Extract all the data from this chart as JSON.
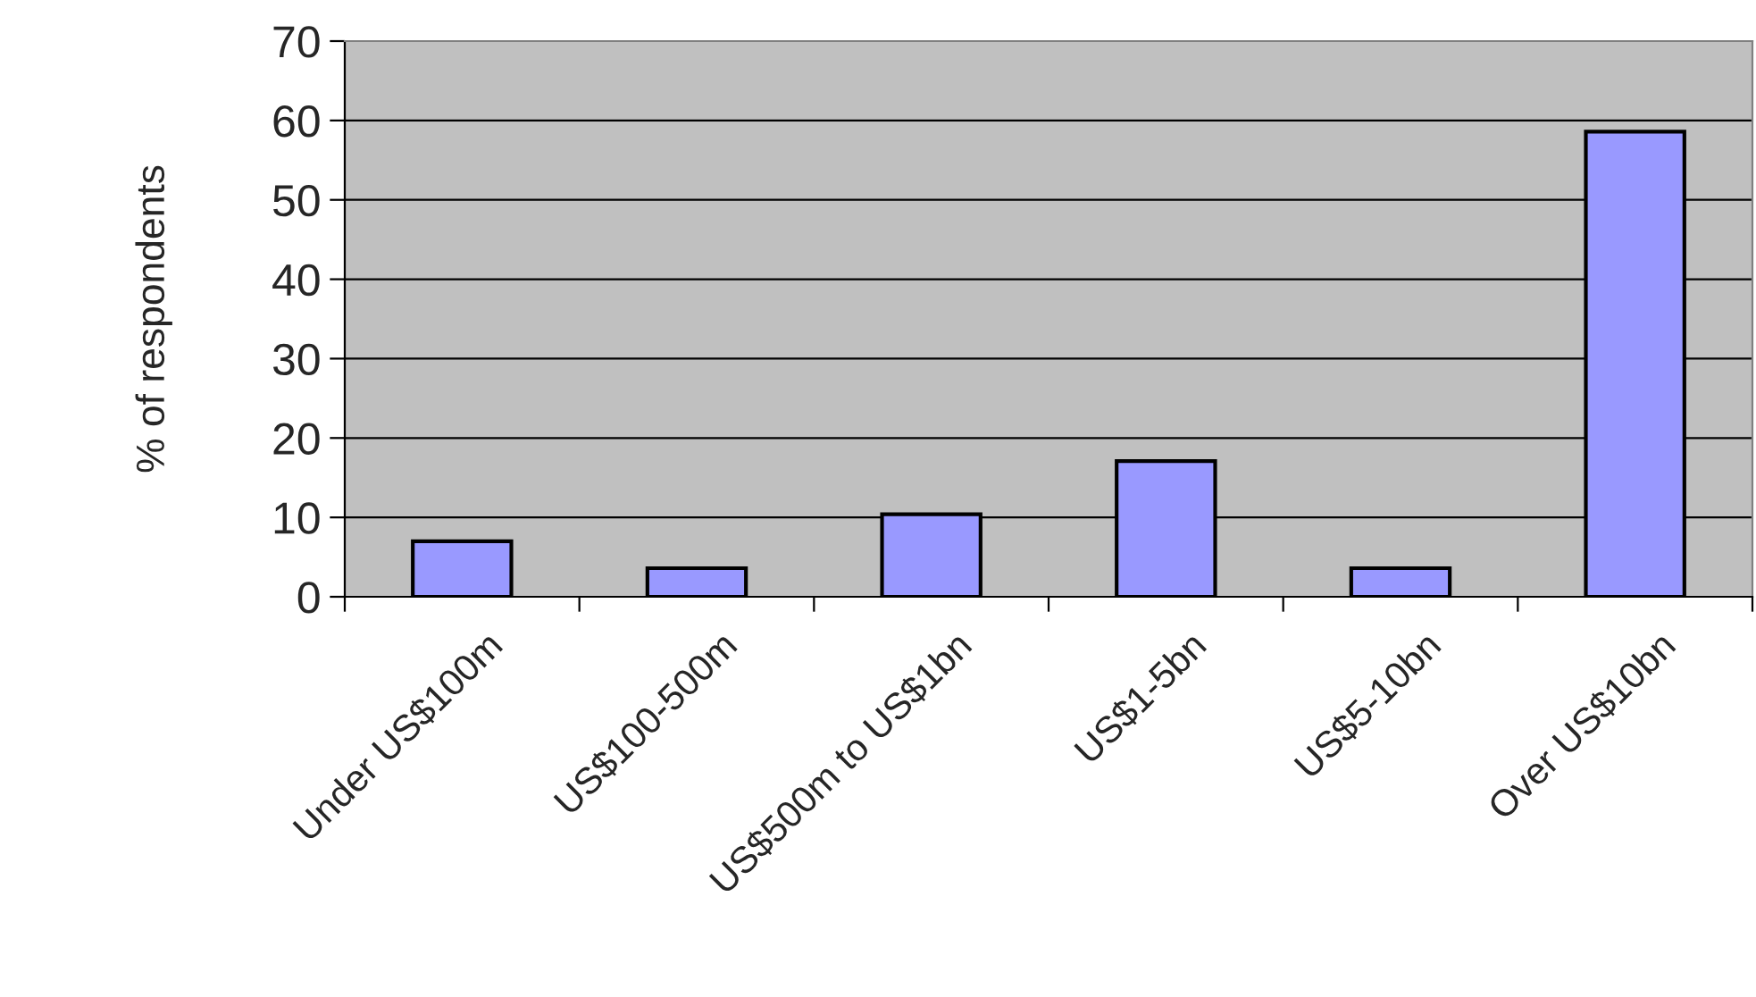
{
  "chart_data": {
    "type": "bar",
    "ylabel": "% of respondents",
    "categories": [
      "Under US$100m",
      "US$100-500m",
      "US$500m to US$1bn",
      "US$1-5bn",
      "US$5-10bn",
      "Over US$10bn"
    ],
    "values": [
      7.0,
      3.6,
      10.4,
      17.1,
      3.6,
      58.6
    ],
    "color": "#9999ff",
    "ylim": [
      0,
      70
    ],
    "yticks": [
      0,
      10,
      20,
      30,
      40,
      50,
      60,
      70
    ],
    "grid": "y"
  }
}
